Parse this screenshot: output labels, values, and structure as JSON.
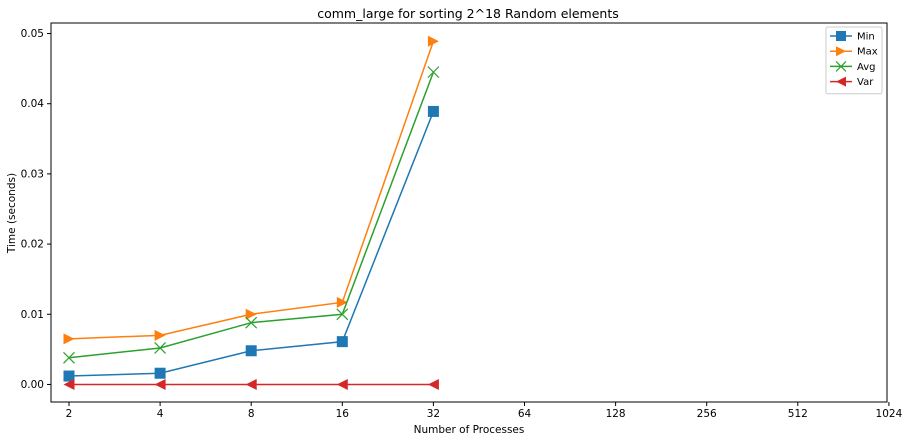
{
  "chart_data": {
    "type": "line",
    "title": "comm_large for sorting 2^18 Random elements",
    "xlabel": "Number of Processes",
    "ylabel": "Time (seconds)",
    "x_scale": "log2",
    "x_ticks": [
      "2",
      "4",
      "8",
      "16",
      "32",
      "64",
      "128",
      "256",
      "512",
      "1024"
    ],
    "x": [
      2,
      4,
      8,
      16,
      32
    ],
    "y_ticks": [
      "0.00",
      "0.01",
      "0.02",
      "0.03",
      "0.04",
      "0.05"
    ],
    "ylim": [
      -0.0025,
      0.0515
    ],
    "grid": false,
    "legend_position": "top-right",
    "series": [
      {
        "name": "Min",
        "color": "#1f77b4",
        "marker": "square",
        "values": [
          0.0012,
          0.0016,
          0.0048,
          0.0061,
          0.0389
        ]
      },
      {
        "name": "Max",
        "color": "#ff7f0e",
        "marker": "triangle-right",
        "values": [
          0.0065,
          0.007,
          0.01,
          0.0117,
          0.0489
        ]
      },
      {
        "name": "Avg",
        "color": "#2ca02c",
        "marker": "x",
        "values": [
          0.0038,
          0.0052,
          0.0088,
          0.01,
          0.0445
        ]
      },
      {
        "name": "Var",
        "color": "#d62728",
        "marker": "triangle-left",
        "values": [
          0.0,
          0.0,
          0.0,
          0.0,
          0.0
        ]
      }
    ]
  }
}
